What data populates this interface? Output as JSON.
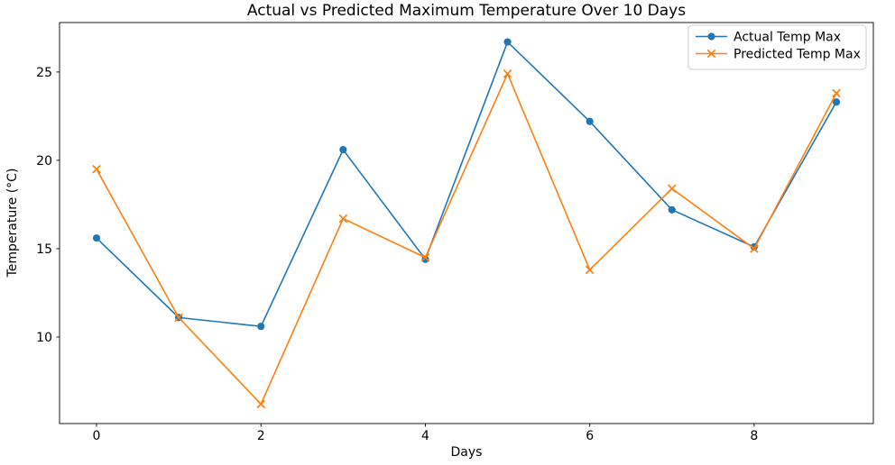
{
  "chart_data": {
    "type": "line",
    "title": "Actual vs Predicted Maximum Temperature Over 10 Days",
    "xlabel": "Days",
    "ylabel": "Temperature (°C)",
    "x": [
      0,
      1,
      2,
      3,
      4,
      5,
      6,
      7,
      8,
      9
    ],
    "series": [
      {
        "name": "Actual Temp Max",
        "color": "#1f77b4",
        "marker": "circle",
        "values": [
          15.6,
          11.1,
          10.6,
          20.6,
          14.4,
          26.7,
          22.2,
          17.2,
          15.1,
          23.3
        ]
      },
      {
        "name": "Predicted Temp Max",
        "color": "#ff7f0e",
        "marker": "x",
        "values": [
          19.5,
          11.1,
          6.2,
          16.7,
          14.5,
          24.9,
          13.8,
          18.4,
          15.0,
          23.8
        ]
      }
    ],
    "xlim": [
      -0.45,
      9.45
    ],
    "ylim": [
      5.1,
      27.8
    ],
    "xticks": [
      0,
      2,
      4,
      6,
      8
    ],
    "yticks": [
      10,
      15,
      20,
      25
    ],
    "grid": false,
    "legend_position": "upper right",
    "axis_color": "#000000",
    "background_color": "#ffffff"
  }
}
